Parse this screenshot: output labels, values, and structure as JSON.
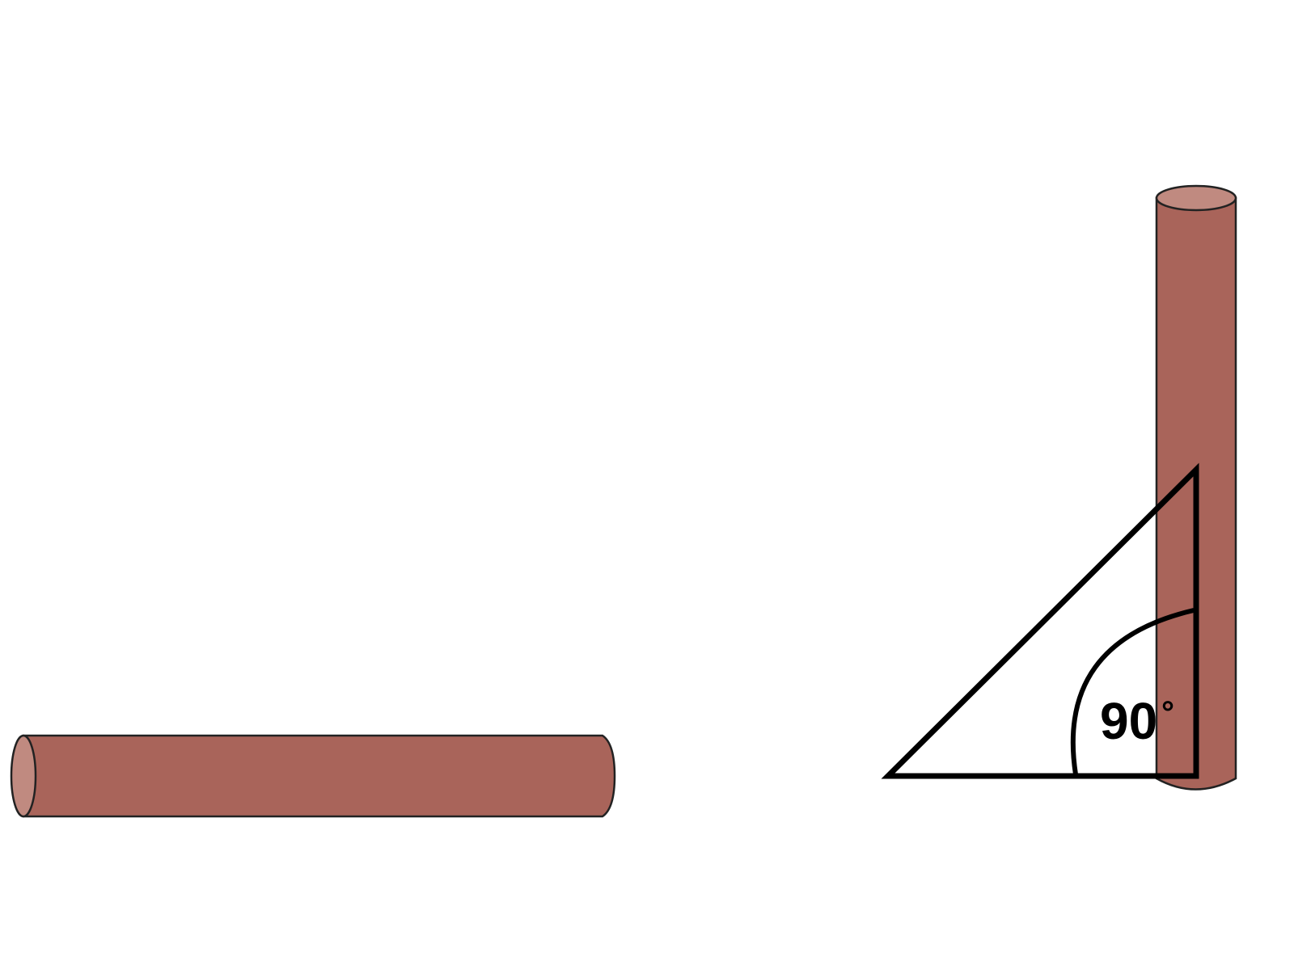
{
  "diagram": {
    "angle_label": {
      "number": "90",
      "symbol": "°"
    },
    "colors": {
      "pipe_body": "#a9645a",
      "pipe_end": "#c08a80",
      "outline": "#000000",
      "background": "#ffffff"
    },
    "objects": [
      "horizontal-pipe",
      "vertical-pipe",
      "set-square-triangle",
      "right-angle-arc"
    ]
  }
}
